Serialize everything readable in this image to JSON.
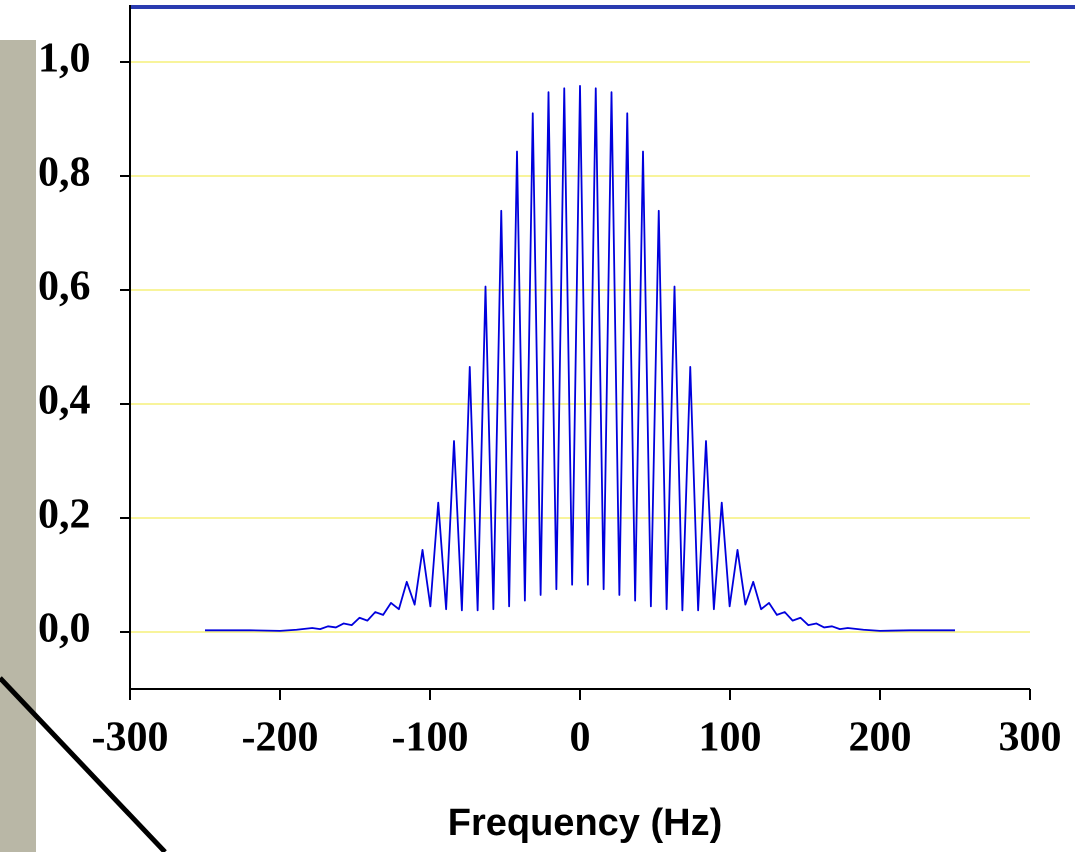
{
  "chart_data": {
    "type": "line",
    "xlabel": "Frequency (Hz)",
    "xlim": [
      -300,
      300
    ],
    "xticks": [
      -300,
      -200,
      -100,
      0,
      100,
      200,
      300
    ],
    "ylim": [
      -0.1,
      1.1
    ],
    "yticks": [
      {
        "value": 0,
        "label": "0,0"
      },
      {
        "value": 0.2,
        "label": "0,2"
      },
      {
        "value": 0.4,
        "label": "0,4"
      },
      {
        "value": 0.6,
        "label": "0,6"
      },
      {
        "value": 0.8,
        "label": "0,8"
      },
      {
        "value": 1.0,
        "label": "1,0"
      }
    ],
    "grid": true,
    "grid_color": "#f5f07a",
    "x": [
      -250,
      -220,
      -200,
      -189,
      -178.5,
      -173.25,
      -168,
      -162.75,
      -157.5,
      -152.25,
      -147,
      -141.75,
      -136.5,
      -131.25,
      -126,
      -120.75,
      -115.5,
      -110.25,
      -105,
      -99.75,
      -94.5,
      -89.25,
      -84,
      -78.75,
      -73.5,
      -68.25,
      -63,
      -57.75,
      -52.5,
      -47.25,
      -42,
      -36.75,
      -31.5,
      -26.25,
      -21,
      -15.75,
      -10.5,
      -5.25,
      0,
      5.25,
      10.5,
      15.75,
      21,
      26.25,
      31.5,
      36.75,
      42,
      47.25,
      52.5,
      57.75,
      63,
      68.25,
      73.5,
      78.75,
      84,
      89.25,
      94.5,
      99.75,
      105,
      110.25,
      115.5,
      120.75,
      126,
      131.25,
      136.5,
      141.75,
      147,
      152.25,
      157.5,
      162.75,
      168,
      173.25,
      178.5,
      189,
      200,
      220,
      250
    ],
    "series": [
      {
        "color": "#0000dd",
        "values": [
          0.003,
          0.003,
          0.002,
          0.004,
          0.007,
          0.005,
          0.01,
          0.008,
          0.015,
          0.012,
          0.025,
          0.02,
          0.035,
          0.03,
          0.051,
          0.04,
          0.088,
          0.048,
          0.144,
          0.045,
          0.227,
          0.04,
          0.335,
          0.038,
          0.465,
          0.038,
          0.606,
          0.04,
          0.739,
          0.045,
          0.843,
          0.055,
          0.91,
          0.065,
          0.947,
          0.075,
          0.954,
          0.083,
          0.958,
          0.083,
          0.954,
          0.075,
          0.947,
          0.065,
          0.91,
          0.055,
          0.843,
          0.045,
          0.739,
          0.04,
          0.606,
          0.038,
          0.465,
          0.038,
          0.335,
          0.04,
          0.227,
          0.045,
          0.144,
          0.048,
          0.088,
          0.04,
          0.051,
          0.03,
          0.035,
          0.02,
          0.025,
          0.012,
          0.015,
          0.008,
          0.01,
          0.005,
          0.007,
          0.004,
          0.002,
          0.003,
          0.003
        ]
      }
    ]
  }
}
